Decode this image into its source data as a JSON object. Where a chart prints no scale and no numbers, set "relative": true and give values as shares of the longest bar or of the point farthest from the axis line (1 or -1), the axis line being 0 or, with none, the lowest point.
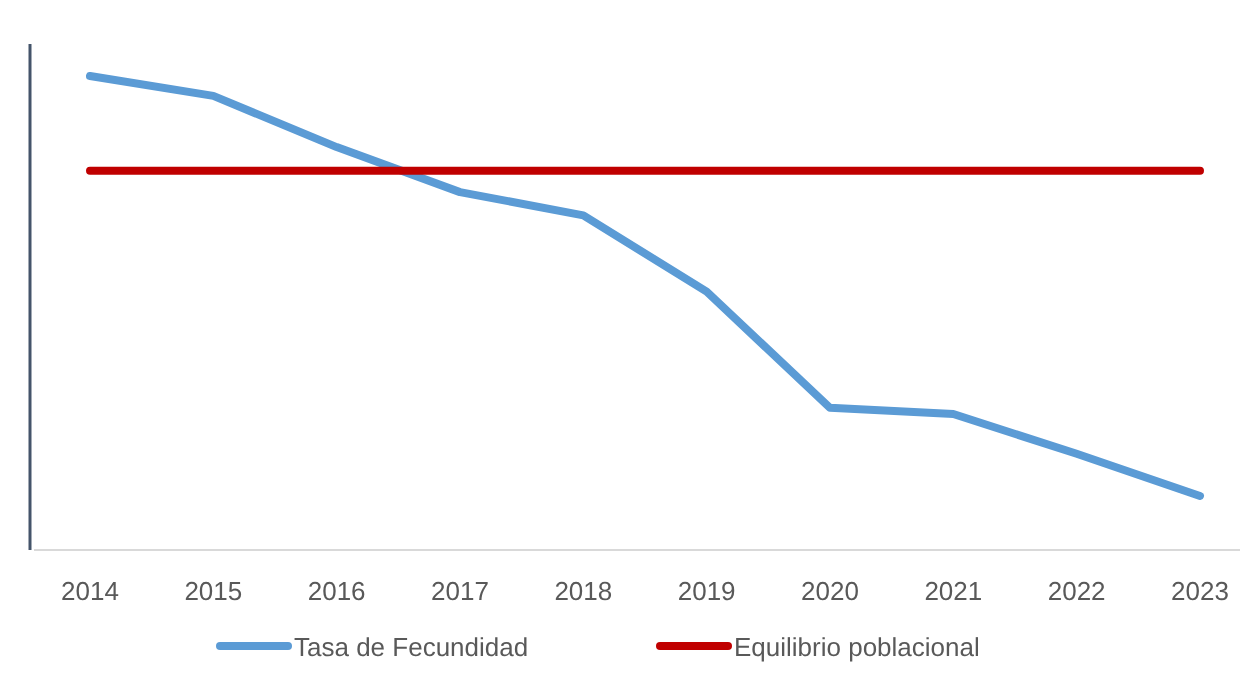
{
  "chart_data": {
    "type": "line",
    "relative": true,
    "categories": [
      "2014",
      "2015",
      "2016",
      "2017",
      "2018",
      "2019",
      "2020",
      "2021",
      "2022",
      "2023"
    ],
    "series": [
      {
        "name": "Tasa de Fecundidad",
        "color": "#5b9bd5",
        "values": [
          1,
          0.958,
          0.85,
          0.755,
          0.706,
          0.545,
          0.3,
          0.287,
          0.203,
          0.114
        ]
      },
      {
        "name": "Equilibrio poblacional",
        "color": "#c00000",
        "values": [
          0.8,
          0.8,
          0.8,
          0.8,
          0.8,
          0.8,
          0.8,
          0.8,
          0.8,
          0.8
        ]
      }
    ],
    "legend": "bottom",
    "marker": "none",
    "line_style": "solid"
  }
}
